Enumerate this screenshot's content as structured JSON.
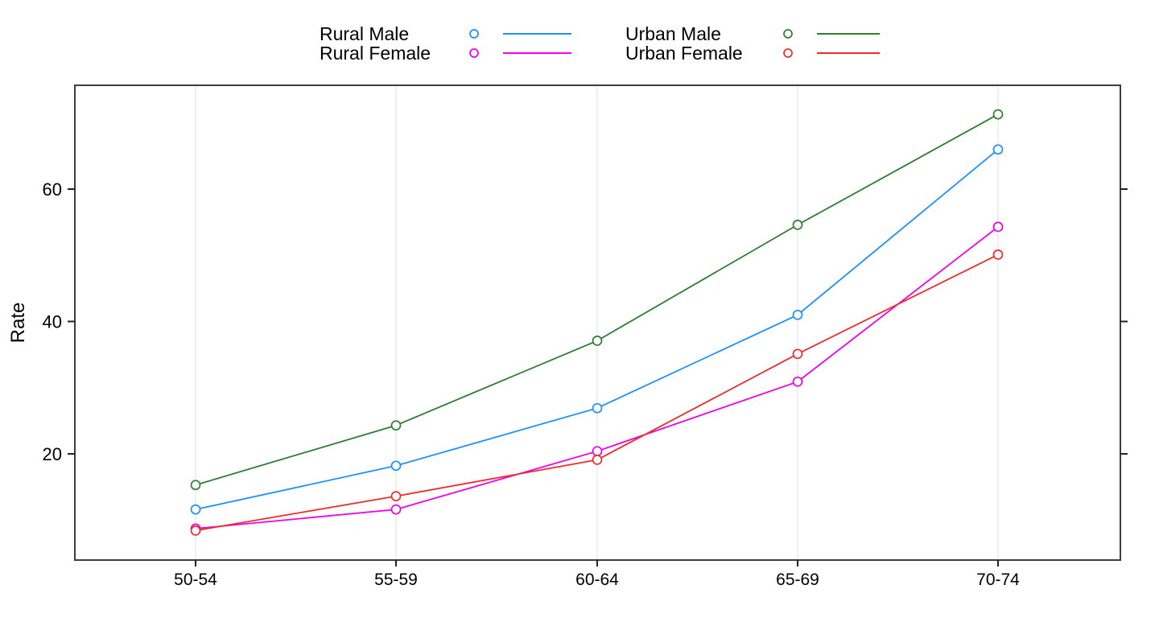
{
  "chart_data": {
    "type": "line",
    "title": "",
    "xlabel": "",
    "ylabel": "Rate",
    "categories": [
      "50-54",
      "55-59",
      "60-64",
      "65-69",
      "70-74"
    ],
    "series": [
      {
        "name": "Rural Male",
        "color": "#1E90FF",
        "values": [
          11.6,
          18.2,
          26.9,
          41.0,
          66.0
        ]
      },
      {
        "name": "Rural Female",
        "color": "#EE00EE",
        "values": [
          8.7,
          11.6,
          20.4,
          30.9,
          54.3
        ]
      },
      {
        "name": "Urban Male",
        "color": "#2E7D32",
        "values": [
          15.3,
          24.3,
          37.1,
          54.6,
          71.3
        ]
      },
      {
        "name": "Urban Female",
        "color": "#EE2C2C",
        "values": [
          8.4,
          13.6,
          19.1,
          35.1,
          50.1
        ]
      }
    ],
    "yticks": [
      20,
      40,
      60
    ],
    "ylim": [
      3.9,
      75.7
    ],
    "grid": "vertical-category-gridlines-only",
    "gridline_color": "#ececec",
    "frame_color": "#3d3d3d",
    "legend_position": "top",
    "legend_columns": 2,
    "marker": "open-circle"
  }
}
